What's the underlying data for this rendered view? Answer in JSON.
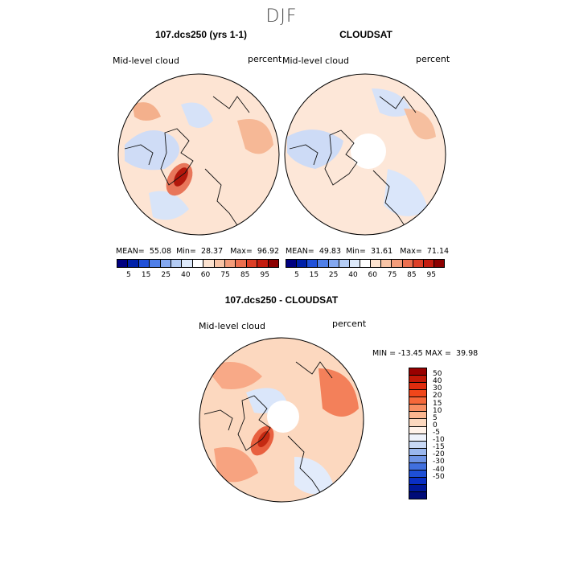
{
  "season": "DJF",
  "panels": [
    {
      "title": "107.dcs250 (yrs 1-1)",
      "left": "Mid-level cloud",
      "right": "percent",
      "mean_label": "MEAN=",
      "mean": "55.08",
      "min_label": "Min=",
      "min": "28.37",
      "max_label": "Max=",
      "max": "96.92"
    },
    {
      "title": "CLOUDSAT",
      "left": "Mid-level cloud",
      "right": "percent",
      "mean_label": "MEAN=",
      "mean": "49.83",
      "min_label": "Min=",
      "min": "31.61",
      "max_label": "Max=",
      "max": "71.14"
    },
    {
      "title": "107.dcs250 - CLOUDSAT",
      "left": "Mid-level cloud",
      "right": "percent"
    }
  ],
  "diff_stats": "MIN = -13.45 MAX =  39.98",
  "abs_colorbar": {
    "ticks": [
      "5",
      "15",
      "25",
      "40",
      "60",
      "75",
      "85",
      "95"
    ],
    "colors": [
      "#000080",
      "#0020a8",
      "#2050d8",
      "#4f7fe8",
      "#84a8f0",
      "#b4ccf4",
      "#dde9fa",
      "#ffffff",
      "#fce2cf",
      "#f8c4a6",
      "#f39c7a",
      "#ec6f4f",
      "#dd3f27",
      "#c41c0f",
      "#8c0000"
    ]
  },
  "diff_colorbar": {
    "ticks": [
      "50",
      "40",
      "30",
      "20",
      "15",
      "10",
      "5",
      "0",
      "-5",
      "-10",
      "-15",
      "-20",
      "-30",
      "-40",
      "-50"
    ],
    "colors": [
      "#990000",
      "#c21807",
      "#e02c0e",
      "#f0461a",
      "#f6683a",
      "#f88e62",
      "#fab690",
      "#fcd8bf",
      "#fff2ea",
      "#eef2fc",
      "#c8d8f5",
      "#9ab7ee",
      "#6e94e6",
      "#4170df",
      "#1e4fd6",
      "#0a2fc4",
      "#00189a",
      "#000b78"
    ]
  },
  "chart_data": [
    {
      "type": "heatmap",
      "projection": "polar-stereographic",
      "title": "107.dcs250 (yrs 1-1)",
      "variable": "Mid-level cloud",
      "units": "percent",
      "mean": 55.08,
      "min": 28.37,
      "max": 96.92,
      "levels": [
        5,
        15,
        25,
        40,
        60,
        75,
        85,
        95
      ]
    },
    {
      "type": "heatmap",
      "projection": "polar-stereographic",
      "title": "CLOUDSAT",
      "variable": "Mid-level cloud",
      "units": "percent",
      "mean": 49.83,
      "min": 31.61,
      "max": 71.14,
      "levels": [
        5,
        15,
        25,
        40,
        60,
        75,
        85,
        95
      ]
    },
    {
      "type": "heatmap",
      "projection": "polar-stereographic",
      "title": "107.dcs250 - CLOUDSAT",
      "variable": "Mid-level cloud",
      "units": "percent",
      "min": -13.45,
      "max": 39.98,
      "levels": [
        -50,
        -40,
        -30,
        -20,
        -15,
        -10,
        -5,
        0,
        5,
        10,
        15,
        20,
        30,
        40,
        50
      ]
    }
  ]
}
